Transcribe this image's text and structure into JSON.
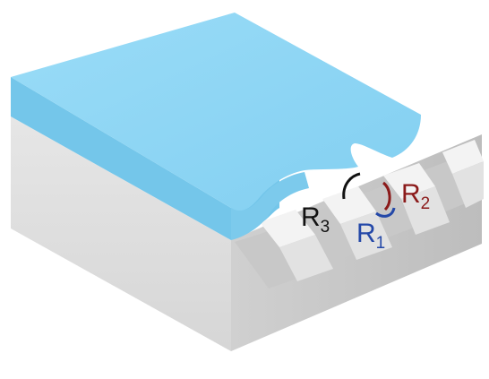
{
  "labels": {
    "r3": {
      "base": "R",
      "sub": "3"
    },
    "r2": {
      "base": "R",
      "sub": "2"
    },
    "r1": {
      "base": "R",
      "sub": "1"
    }
  },
  "colors": {
    "liquid_top": "#8ed6f4",
    "liquid_side": "#6fc4ea",
    "solid_top": "#eeeeee",
    "solid_front": "#dcdcdc",
    "solid_side": "#c9c9c9",
    "r3_color": "#111111",
    "r2_color": "#8b1a1a",
    "r1_color": "#2448a8"
  }
}
